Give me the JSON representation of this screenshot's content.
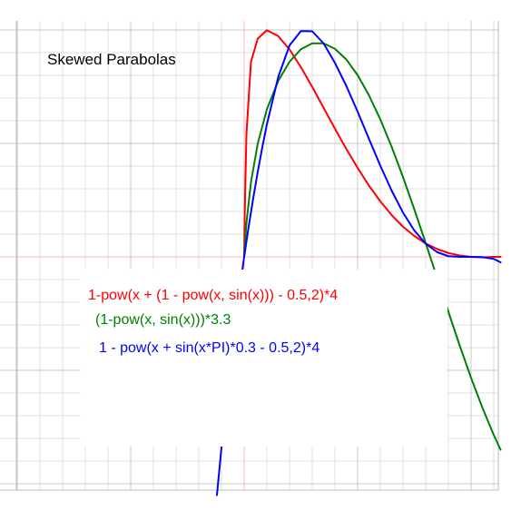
{
  "chart_data": {
    "type": "line",
    "title": "Skewed Parabolas",
    "xlabel": "",
    "ylabel": "",
    "xlim": [
      -1.0,
      1.13
    ],
    "ylim": [
      -1.05,
      1.02
    ],
    "grid": true,
    "legend_position": "center",
    "series": [
      {
        "name": "1-pow(x  + (1 - pow(x, sin(x))) - 0.5,2)*4",
        "color": "#ff0000",
        "x": [
          0.0,
          0.002,
          0.01,
          0.03,
          0.06,
          0.1,
          0.15,
          0.2,
          0.25,
          0.3,
          0.35,
          0.4,
          0.45,
          0.5,
          0.55,
          0.6,
          0.65,
          0.7,
          0.75,
          0.8,
          0.85,
          0.9,
          0.95,
          1.0,
          1.05,
          1.1,
          1.13
        ],
        "y": [
          0.0,
          0.164,
          0.541,
          0.859,
          0.962,
          0.999,
          0.973,
          0.914,
          0.836,
          0.749,
          0.657,
          0.565,
          0.476,
          0.392,
          0.314,
          0.245,
          0.184,
          0.133,
          0.092,
          0.059,
          0.035,
          0.017,
          0.006,
          0.0,
          -0.002,
          -0.0,
          -0.0
        ]
      },
      {
        "name": "(1-pow(x, sin(x)))*3.3",
        "color": "#008000",
        "x": [
          0.0,
          0.002,
          0.01,
          0.03,
          0.06,
          0.1,
          0.15,
          0.2,
          0.25,
          0.3,
          0.35,
          0.4,
          0.45,
          0.5,
          0.55,
          0.6,
          0.65,
          0.7,
          0.75,
          0.8,
          0.85,
          0.9,
          0.95,
          1.0,
          1.05,
          1.1,
          1.13
        ],
        "y": [
          0.0,
          0.04,
          0.149,
          0.329,
          0.5,
          0.65,
          0.775,
          0.86,
          0.915,
          0.941,
          0.941,
          0.917,
          0.87,
          0.801,
          0.712,
          0.606,
          0.485,
          0.352,
          0.209,
          0.061,
          -0.091,
          -0.242,
          -0.391,
          -0.533,
          -0.665,
          -0.785,
          -0.85
        ]
      },
      {
        "name": "1 - pow(x  + sin(x*PI)*0.3 - 0.5,2)*4",
        "color": "#0000ff",
        "x": [
          -0.12,
          -0.1,
          -0.08,
          -0.06,
          -0.04,
          -0.02,
          0.0,
          0.02,
          0.04,
          0.06,
          0.08,
          0.1,
          0.15,
          0.2,
          0.25,
          0.3,
          0.35,
          0.4,
          0.45,
          0.5,
          0.55,
          0.6,
          0.65,
          0.7,
          0.75,
          0.8,
          0.85,
          0.9,
          0.95,
          1.0,
          1.05,
          1.1,
          1.13
        ],
        "y": [
          -1.05,
          -0.841,
          -0.646,
          -0.466,
          -0.299,
          -0.144,
          0.0,
          0.134,
          0.259,
          0.375,
          0.483,
          0.583,
          0.792,
          0.932,
          0.995,
          0.994,
          0.941,
          0.855,
          0.754,
          0.64,
          0.52,
          0.402,
          0.292,
          0.195,
          0.116,
          0.058,
          0.021,
          0.003,
          -0.0,
          0.0,
          -0.001,
          -0.009,
          -0.024
        ]
      }
    ]
  }
}
